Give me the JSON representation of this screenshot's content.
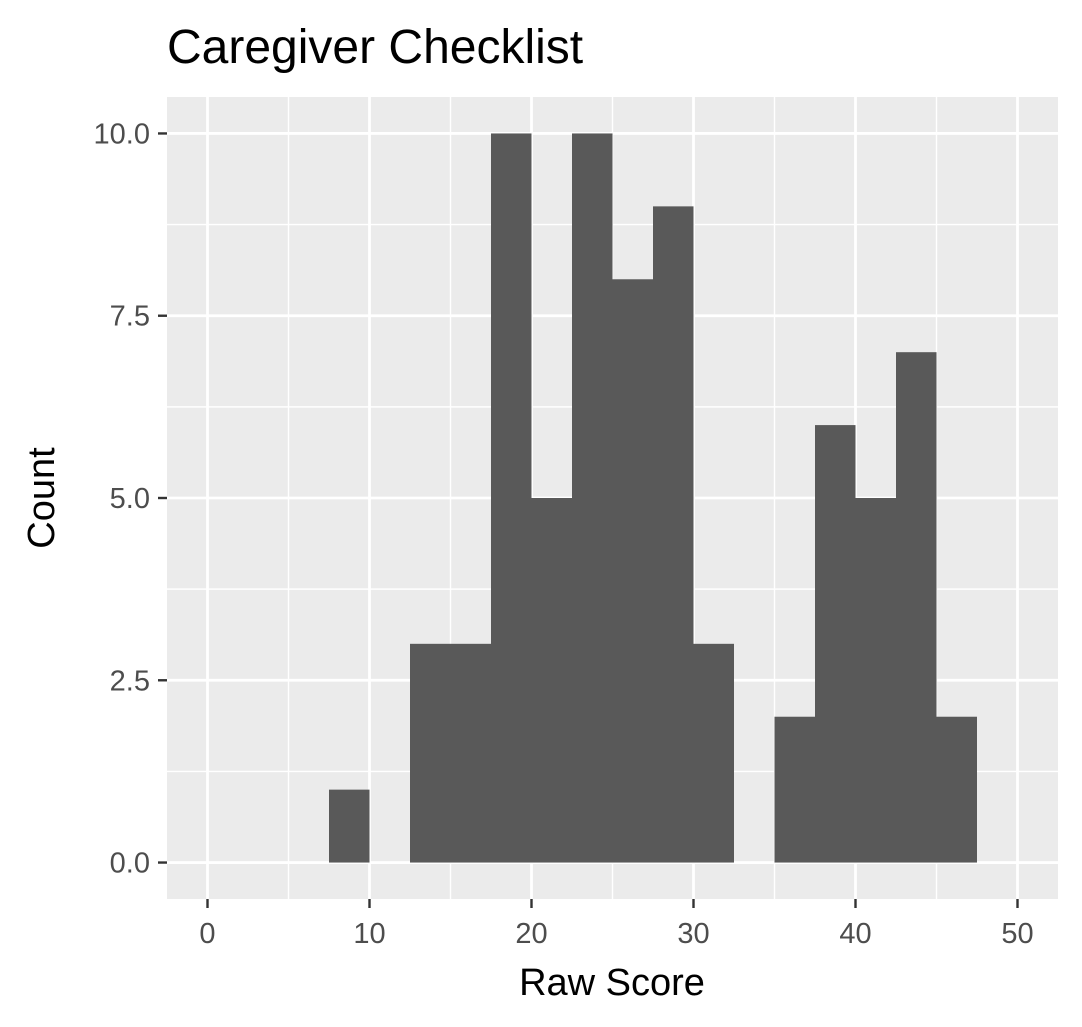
{
  "chart_data": {
    "type": "bar",
    "title": "Caregiver Checklist",
    "xlabel": "Raw Score",
    "ylabel": "Count",
    "xlim": [
      -2.5,
      52.5
    ],
    "ylim": [
      -0.5,
      10.5
    ],
    "x_ticks": [
      0,
      10,
      20,
      30,
      40,
      50
    ],
    "x_tick_labels": [
      "0",
      "10",
      "20",
      "30",
      "40",
      "50"
    ],
    "y_ticks": [
      0,
      2.5,
      5,
      7.5,
      10
    ],
    "y_tick_labels": [
      "0.0",
      "2.5",
      "5.0",
      "7.5",
      "10.0"
    ],
    "x_minor_ticks": [
      5,
      15,
      25,
      35,
      45
    ],
    "y_minor_ticks": [
      1.25,
      3.75,
      6.25,
      8.75
    ],
    "bin_width": 2.5,
    "bins": [
      {
        "x_start": 7.5,
        "x_end": 10,
        "count": 1
      },
      {
        "x_start": 12.5,
        "x_end": 15,
        "count": 3
      },
      {
        "x_start": 15,
        "x_end": 17.5,
        "count": 3
      },
      {
        "x_start": 17.5,
        "x_end": 20,
        "count": 10
      },
      {
        "x_start": 20,
        "x_end": 22.5,
        "count": 5
      },
      {
        "x_start": 22.5,
        "x_end": 25,
        "count": 10
      },
      {
        "x_start": 25,
        "x_end": 27.5,
        "count": 8
      },
      {
        "x_start": 27.5,
        "x_end": 30,
        "count": 9
      },
      {
        "x_start": 30,
        "x_end": 32.5,
        "count": 3
      },
      {
        "x_start": 35,
        "x_end": 37.5,
        "count": 2
      },
      {
        "x_start": 37.5,
        "x_end": 40,
        "count": 6
      },
      {
        "x_start": 40,
        "x_end": 42.5,
        "count": 5
      },
      {
        "x_start": 42.5,
        "x_end": 45,
        "count": 7
      },
      {
        "x_start": 45,
        "x_end": 47.5,
        "count": 2
      }
    ],
    "grid": true,
    "colors": {
      "bar_fill": "#595959",
      "panel_background": "#EBEBEB",
      "grid_line": "#FFFFFF",
      "tick_mark": "#333333",
      "tick_label": "#4D4D4D",
      "text": "#000000"
    }
  }
}
